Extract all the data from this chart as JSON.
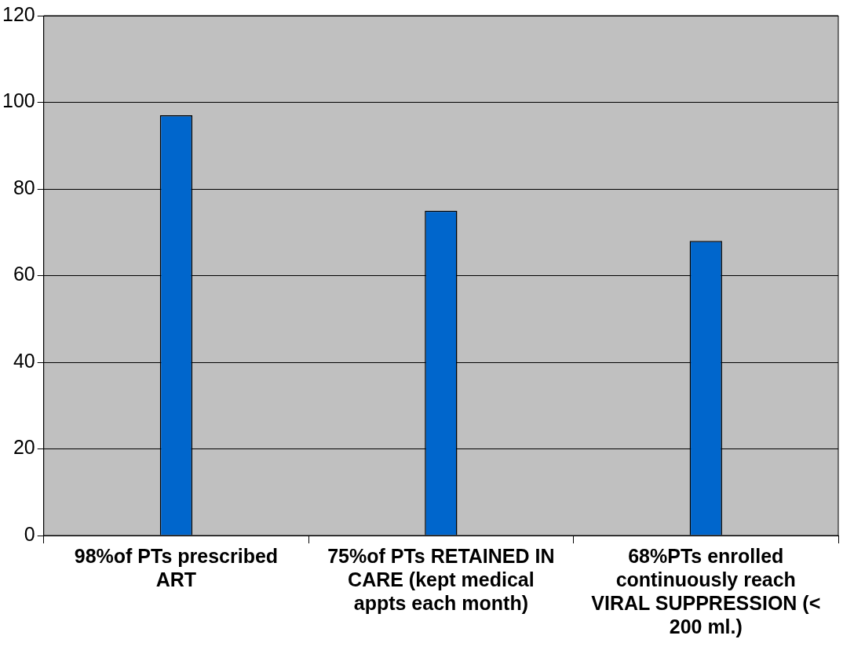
{
  "chart_data": {
    "type": "bar",
    "categories": [
      "98%of PTs prescribed ART",
      "75%of PTs RETAINED IN CARE (kept medical appts each month)",
      "68%PTs enrolled continuously reach VIRAL SUPPRESSION (< 200 ml.)"
    ],
    "values": [
      97,
      75,
      68
    ],
    "color": "#0066cc",
    "ylim": [
      0,
      120
    ],
    "yticks": [
      0,
      20,
      40,
      60,
      80,
      100,
      120
    ],
    "grid": "y",
    "legend": false
  }
}
